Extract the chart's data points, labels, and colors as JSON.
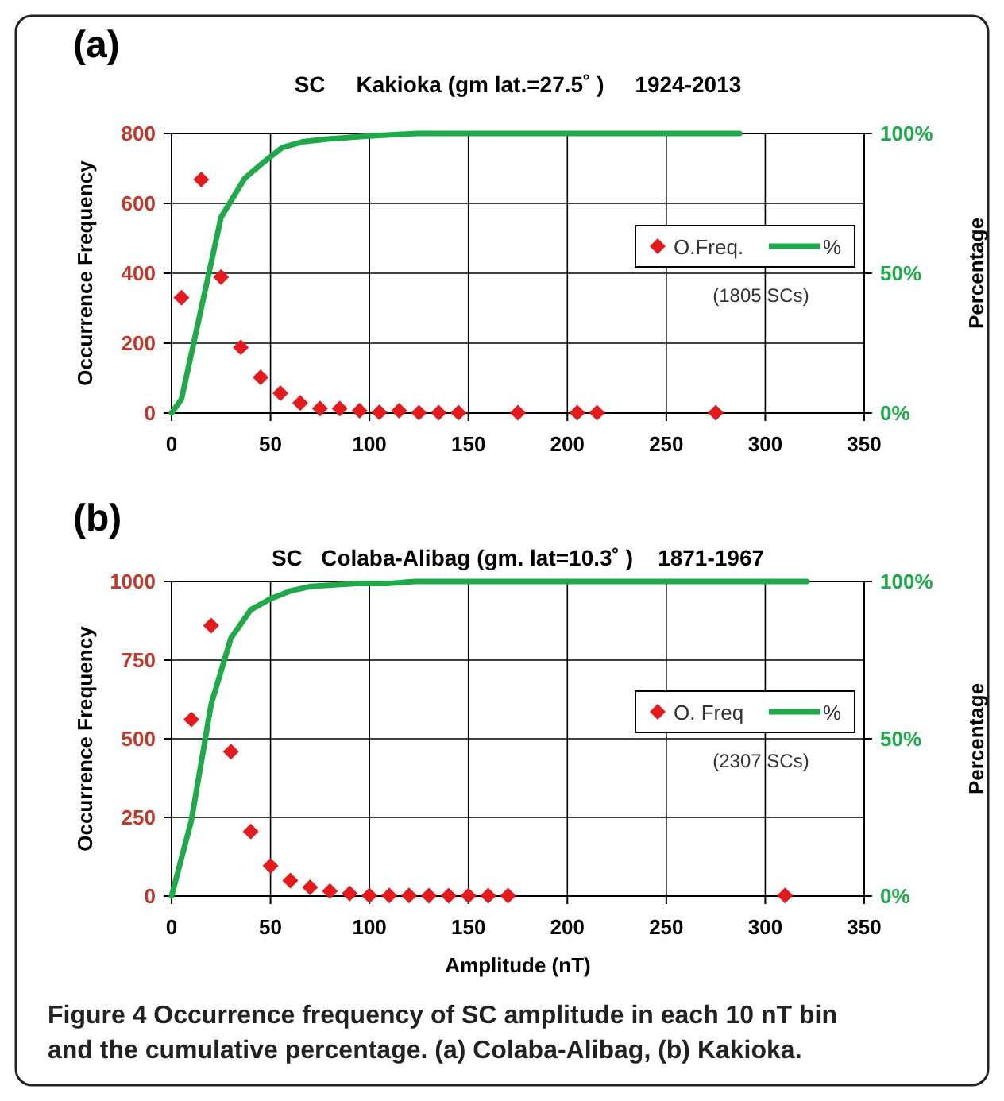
{
  "chart_data": [
    {
      "type": "scatter",
      "title": "(a)",
      "subtitle": "SC     Kakioka (gm lat.=27.5˚ )     1924-2013",
      "ylabel": "Occurrence Frequency",
      "y2label": "Percentage",
      "xlim": [
        0,
        350
      ],
      "xticks": [
        0,
        50,
        100,
        150,
        200,
        250,
        300,
        350
      ],
      "ylim": [
        0,
        800
      ],
      "yticks": [
        0,
        200,
        400,
        600,
        800
      ],
      "y2lim": [
        0,
        100
      ],
      "y2ticks": [
        {
          "value": 0,
          "label": "0%"
        },
        {
          "value": 50,
          "label": "50%"
        },
        {
          "value": 100,
          "label": "100%"
        }
      ],
      "grid": true,
      "legend": "right",
      "annotations": [
        "(1805 SCs)"
      ],
      "series": [
        {
          "name": "O.Freq.",
          "color": "#e41a1c",
          "marker": "diamond",
          "x": [
            5,
            15,
            25,
            35,
            45,
            55,
            65,
            75,
            85,
            95,
            105,
            115,
            125,
            135,
            145,
            175,
            205,
            215,
            275
          ],
          "values": [
            330,
            668,
            389,
            188,
            102,
            57,
            29,
            13,
            13,
            7,
            2,
            7,
            1,
            1,
            1,
            1,
            1,
            1,
            1
          ]
        },
        {
          "type": "line",
          "name": "%",
          "color": "#1faa4a",
          "marker": "none",
          "axis": "y2",
          "x": [
            0,
            5,
            25,
            37,
            47,
            56,
            66,
            79,
            98,
            124,
            287
          ],
          "values": [
            0,
            5,
            70,
            84,
            90,
            95,
            97,
            98,
            99,
            100,
            100
          ]
        }
      ]
    },
    {
      "type": "scatter",
      "title": "(b)",
      "subtitle": "SC   Colaba-Alibag (gm. lat=10.3˚ )    1871-1967",
      "xlabel": "Amplitude (nT)",
      "ylabel": "Occurrence Frequency",
      "y2label": "Percentage",
      "xlim": [
        0,
        350
      ],
      "xticks": [
        0,
        50,
        100,
        150,
        200,
        250,
        300,
        350
      ],
      "ylim": [
        0,
        1000
      ],
      "yticks": [
        0,
        250,
        500,
        750,
        1000
      ],
      "y2lim": [
        0,
        100
      ],
      "y2ticks": [
        {
          "value": 0,
          "label": "0%"
        },
        {
          "value": 50,
          "label": "50%"
        },
        {
          "value": 100,
          "label": "100%"
        }
      ],
      "grid": true,
      "legend": "right",
      "annotations": [
        "(2307 SCs)",
        "Figure 4 Occurrence frequency of SC amplitude in each 10 nT bin and the cumulative percentage. (a) Colaba-Alibag, (b) Kakioka."
      ],
      "series": [
        {
          "name": "O. Freq",
          "color": "#e41a1c",
          "marker": "diamond",
          "x": [
            10,
            20,
            30,
            40,
            50,
            60,
            70,
            80,
            90,
            100,
            110,
            120,
            130,
            140,
            150,
            160,
            170,
            310
          ],
          "values": [
            561,
            860,
            459,
            205,
            96,
            49,
            28,
            16,
            8,
            2,
            2,
            2,
            1,
            1,
            1,
            1,
            1,
            2
          ]
        },
        {
          "type": "line",
          "name": "%",
          "color": "#1faa4a",
          "marker": "none",
          "axis": "y2",
          "x": [
            0,
            10,
            20,
            30,
            40,
            50,
            60,
            70,
            95,
            110,
            123,
            321
          ],
          "values": [
            0,
            24,
            61,
            82,
            91,
            94.5,
            97,
            98.4,
            99.4,
            99.4,
            100,
            100
          ]
        }
      ]
    }
  ]
}
